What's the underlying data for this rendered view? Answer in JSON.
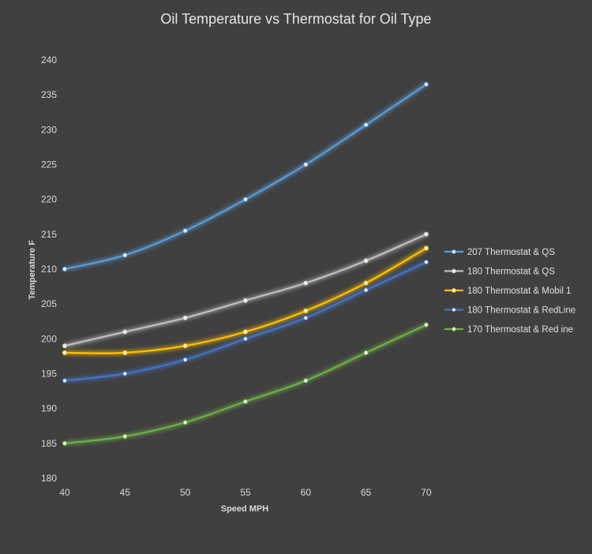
{
  "chart_data": {
    "type": "line",
    "title": "Oil Temperature vs Thermostat for Oil Type",
    "xlabel": "Speed MPH",
    "ylabel": "Temperature F",
    "x": [
      40,
      45,
      50,
      55,
      60,
      65,
      70
    ],
    "xlim": [
      40,
      70
    ],
    "ylim": [
      180,
      240
    ],
    "yticks": [
      180,
      185,
      190,
      195,
      200,
      205,
      210,
      215,
      220,
      225,
      230,
      235,
      240
    ],
    "grid": false,
    "legend_position": "right",
    "series": [
      {
        "name": "207 Thermostat & QS",
        "color": "#5b9bd5",
        "values": [
          210,
          212,
          215.5,
          220,
          225,
          230.7,
          236.5
        ]
      },
      {
        "name": "180 Thermostat & QS",
        "color": "#bfbfbf",
        "values": [
          199,
          201,
          203,
          205.5,
          208,
          211.2,
          215
        ]
      },
      {
        "name": "180 Thermostat & Mobil 1",
        "color": "#ffc000",
        "values": [
          198,
          198,
          199,
          201,
          204,
          208,
          213
        ]
      },
      {
        "name": "180 Thermostat & RedLine",
        "color": "#4472c4",
        "values": [
          194,
          195,
          197,
          200,
          203,
          207,
          211
        ]
      },
      {
        "name": "170 Thermostat & Red ine",
        "color": "#70ad47",
        "values": [
          185,
          186,
          188,
          191,
          194,
          198,
          202
        ]
      }
    ]
  }
}
